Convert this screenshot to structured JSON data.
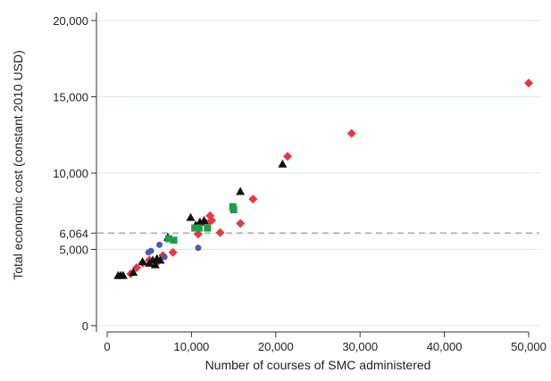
{
  "chart_data": {
    "type": "scatter",
    "xlabel": "Number of courses of SMC administered",
    "ylabel": "Total economic cost (constant 2010 USD)",
    "xlim": [
      0,
      50000
    ],
    "ylim": [
      0,
      20000
    ],
    "x_ticks": [
      {
        "value": 0,
        "label": "0"
      },
      {
        "value": 10000,
        "label": "10,000"
      },
      {
        "value": 20000,
        "label": "20,000"
      },
      {
        "value": 30000,
        "label": "30,000"
      },
      {
        "value": 40000,
        "label": "40,000"
      },
      {
        "value": 50000,
        "label": "50,000"
      }
    ],
    "y_ticks": [
      {
        "value": 0,
        "label": "0"
      },
      {
        "value": 5000,
        "label": "5,000"
      },
      {
        "value": 6064,
        "label": "6,064"
      },
      {
        "value": 10000,
        "label": "10,000"
      },
      {
        "value": 15000,
        "label": "15,000"
      },
      {
        "value": 20000,
        "label": "20,000"
      }
    ],
    "reference_line": {
      "y": 6064,
      "style": "dashed",
      "color": "#aaaaaa"
    },
    "grid": "horizontal",
    "grid_color": "#d9eee5",
    "series": [
      {
        "marker": "diamond",
        "color": "#e8383d",
        "points": [
          [
            2800,
            3400
          ],
          [
            3500,
            3800
          ],
          [
            4200,
            4100
          ],
          [
            5000,
            4300
          ],
          [
            6000,
            4200
          ],
          [
            6600,
            4600
          ],
          [
            7800,
            4800
          ],
          [
            10800,
            6000
          ],
          [
            11800,
            6700
          ],
          [
            12200,
            7200
          ],
          [
            12400,
            6900
          ],
          [
            13400,
            6100
          ],
          [
            15800,
            6700
          ],
          [
            17300,
            8300
          ],
          [
            21400,
            11100
          ],
          [
            29000,
            12600
          ],
          [
            50000,
            15900
          ]
        ]
      },
      {
        "marker": "triangle",
        "color": "#111111",
        "points": [
          [
            1300,
            3300
          ],
          [
            1600,
            3300
          ],
          [
            1900,
            3300
          ],
          [
            3100,
            3500
          ],
          [
            4200,
            4200
          ],
          [
            5000,
            4100
          ],
          [
            5400,
            4300
          ],
          [
            5700,
            4000
          ],
          [
            5900,
            4400
          ],
          [
            6300,
            4300
          ],
          [
            7200,
            5800
          ],
          [
            9900,
            7100
          ],
          [
            10500,
            6600
          ],
          [
            11000,
            6800
          ],
          [
            11500,
            6900
          ],
          [
            15800,
            8800
          ],
          [
            20800,
            10600
          ]
        ]
      },
      {
        "marker": "circle",
        "color": "#4a5ab0",
        "points": [
          [
            4900,
            4800
          ],
          [
            5200,
            4900
          ],
          [
            6200,
            5300
          ],
          [
            6800,
            4500
          ],
          [
            10800,
            5100
          ]
        ]
      },
      {
        "marker": "square",
        "color": "#1f9e4a",
        "points": [
          [
            7300,
            5700
          ],
          [
            7900,
            5600
          ],
          [
            10400,
            6400
          ],
          [
            10900,
            6400
          ],
          [
            11900,
            6400
          ],
          [
            14900,
            7800
          ],
          [
            15000,
            7600
          ]
        ]
      }
    ]
  }
}
